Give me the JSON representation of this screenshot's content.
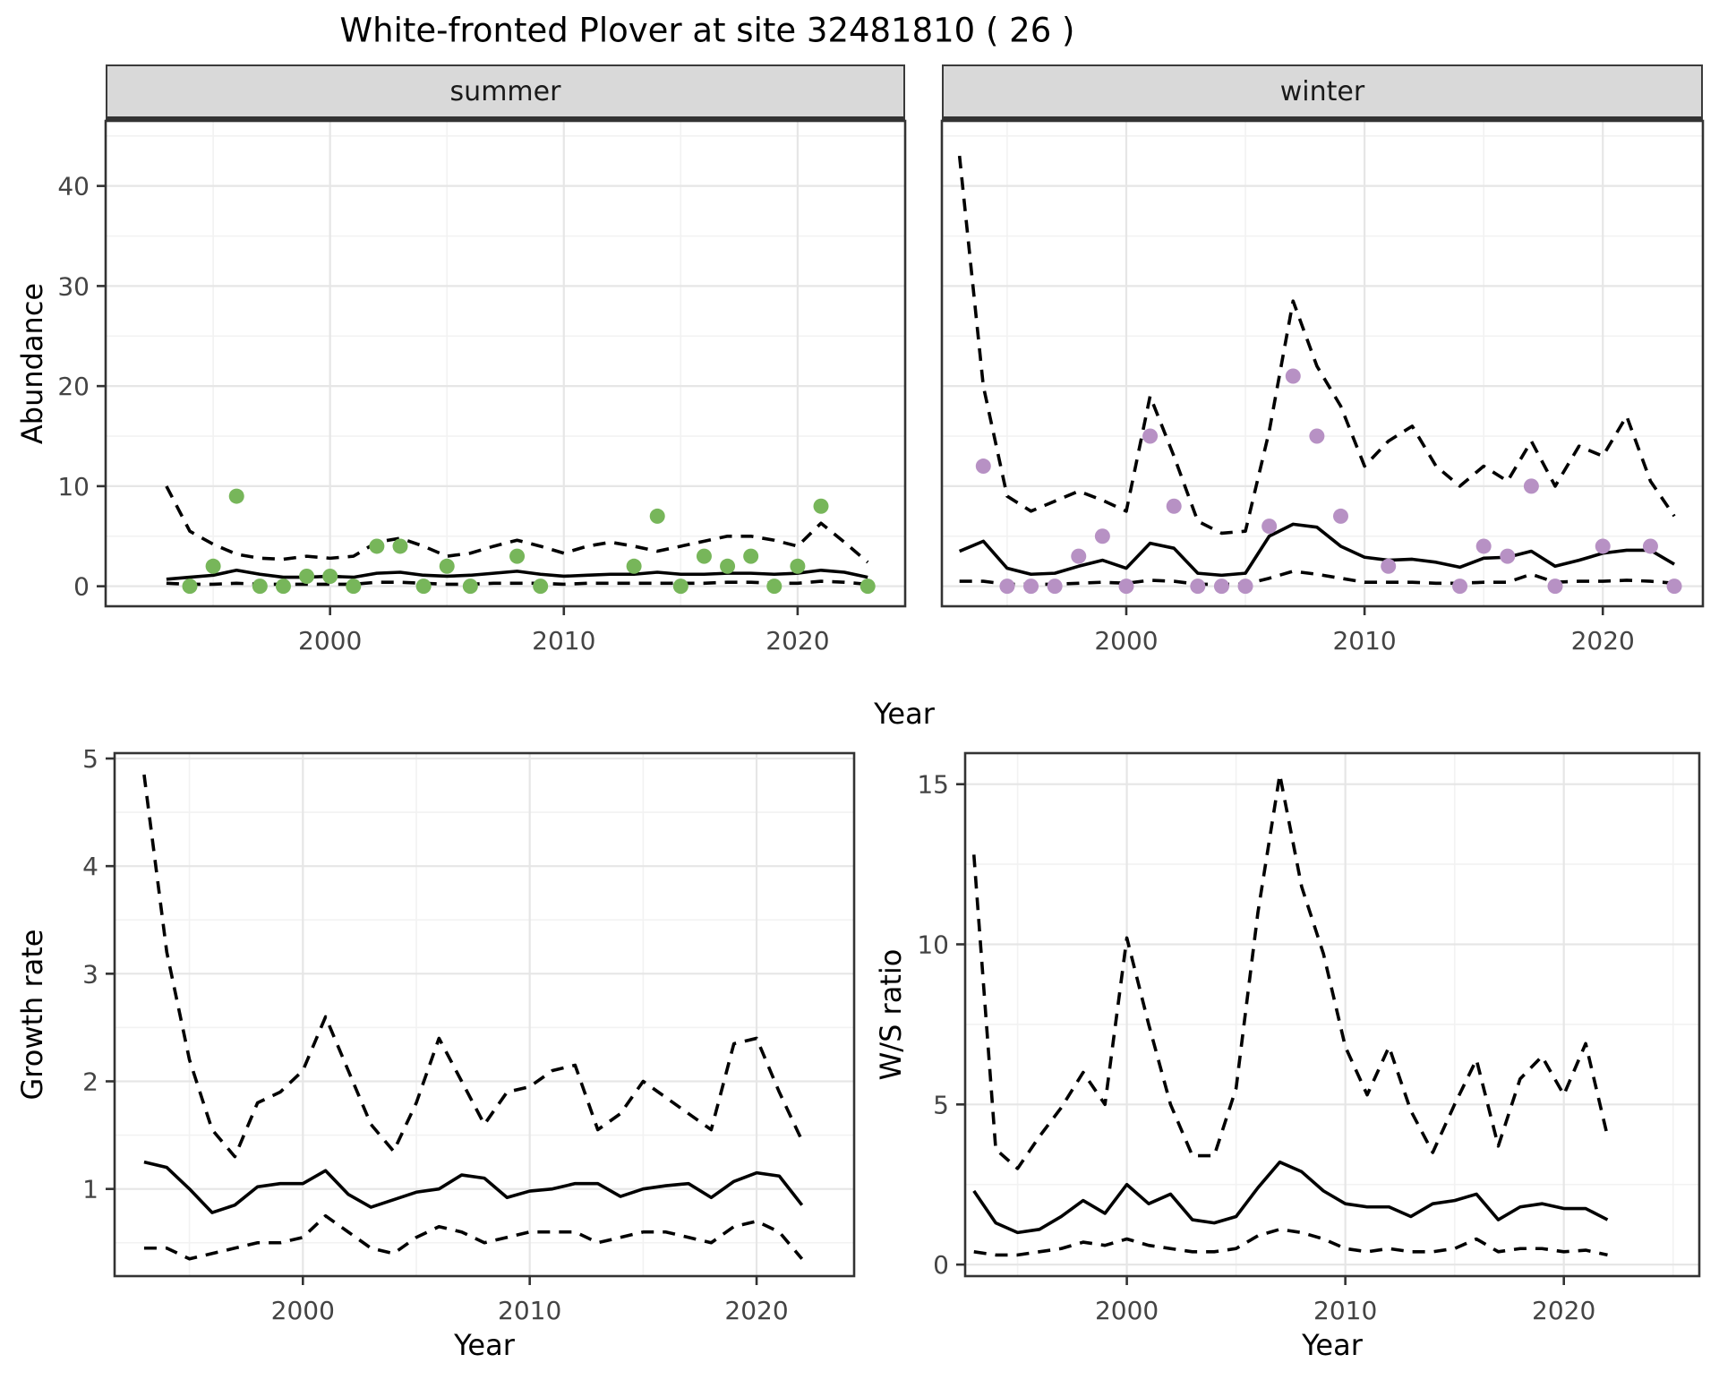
{
  "title": "White-fronted Plover at site 32481810 ( 26 )",
  "colors": {
    "summer_point": "#77b65a",
    "winter_point": "#b791c4",
    "line": "#000000",
    "strip_bg": "#d9d9d9",
    "grid_major": "#e6e6e6",
    "grid_minor": "#f2f2f2",
    "panel_border": "#333333",
    "tick_label": "#444444"
  },
  "chart_data": [
    {
      "type": "line",
      "facet": "summer",
      "ylabel": "Abundance",
      "xlabel": "Year",
      "grid": true,
      "legend": "none",
      "xlim": [
        1990.4,
        2024.6
      ],
      "ylim": [
        -2,
        46.5
      ],
      "xticks": [
        2000,
        2010,
        2020
      ],
      "xticks_minor": [
        1995,
        2005,
        2015
      ],
      "yticks": [
        0,
        10,
        20,
        30,
        40
      ],
      "yticks_minor": [
        5,
        15,
        25,
        35,
        45
      ],
      "line_years": [
        1993,
        1994,
        1995,
        1996,
        1997,
        1998,
        1999,
        2000,
        2001,
        2002,
        2003,
        2004,
        2005,
        2006,
        2007,
        2008,
        2009,
        2010,
        2011,
        2012,
        2013,
        2014,
        2015,
        2016,
        2017,
        2018,
        2019,
        2020,
        2021,
        2022,
        2023
      ],
      "series": [
        {
          "name": "median",
          "style": "solid",
          "values": [
            0.7,
            0.9,
            1.1,
            1.6,
            1.2,
            0.9,
            0.9,
            1.0,
            0.9,
            1.3,
            1.4,
            1.1,
            1.0,
            1.1,
            1.3,
            1.5,
            1.2,
            1.0,
            1.1,
            1.2,
            1.2,
            1.4,
            1.2,
            1.2,
            1.3,
            1.3,
            1.2,
            1.3,
            1.6,
            1.4,
            0.9
          ]
        },
        {
          "name": "upper 95% CI",
          "style": "dashed",
          "values": [
            10,
            5.5,
            4.2,
            3.2,
            2.8,
            2.7,
            3.0,
            2.8,
            3.0,
            4.4,
            4.8,
            4.0,
            3.0,
            3.3,
            4.0,
            4.6,
            4.0,
            3.3,
            4.0,
            4.4,
            4.0,
            3.5,
            4.0,
            4.5,
            5.0,
            5.0,
            4.6,
            4.0,
            6.3,
            4.4,
            2.4
          ]
        },
        {
          "name": "lower 95% CI",
          "style": "dashed",
          "values": [
            0.3,
            0.2,
            0.2,
            0.3,
            0.2,
            0.2,
            0.2,
            0.2,
            0.2,
            0.4,
            0.4,
            0.3,
            0.2,
            0.2,
            0.3,
            0.3,
            0.3,
            0.2,
            0.3,
            0.3,
            0.3,
            0.3,
            0.3,
            0.3,
            0.4,
            0.4,
            0.3,
            0.3,
            0.5,
            0.4,
            0.2
          ]
        }
      ],
      "points": {
        "color_key": "summer_point",
        "years": [
          1994,
          1995,
          1996,
          1997,
          1998,
          1999,
          2000,
          2001,
          2002,
          2003,
          2004,
          2005,
          2006,
          2008,
          2009,
          2013,
          2014,
          2015,
          2016,
          2017,
          2018,
          2019,
          2020,
          2021,
          2023
        ],
        "values": [
          0,
          2,
          9,
          0,
          0,
          1,
          1,
          0,
          4,
          4,
          0,
          2,
          0,
          3,
          0,
          2,
          7,
          0,
          3,
          2,
          3,
          0,
          2,
          8,
          0
        ]
      }
    },
    {
      "type": "line",
      "facet": "winter",
      "ylabel": "Abundance",
      "xlabel": "Year",
      "grid": true,
      "legend": "none",
      "xlim": [
        1992.26,
        2024.2
      ],
      "ylim": [
        -2,
        46.5
      ],
      "xticks": [
        2000,
        2010,
        2020
      ],
      "xticks_minor": [
        1995,
        2005,
        2015
      ],
      "yticks": [
        0,
        10,
        20,
        30,
        40
      ],
      "yticks_minor": [
        5,
        15,
        25,
        35,
        45
      ],
      "line_years": [
        1993,
        1994,
        1995,
        1996,
        1997,
        1998,
        1999,
        2000,
        2001,
        2002,
        2003,
        2004,
        2005,
        2006,
        2007,
        2008,
        2009,
        2010,
        2011,
        2012,
        2013,
        2014,
        2015,
        2016,
        2017,
        2018,
        2019,
        2020,
        2021,
        2022,
        2023
      ],
      "series": [
        {
          "name": "median",
          "style": "solid",
          "values": [
            3.5,
            4.5,
            1.8,
            1.2,
            1.3,
            2.0,
            2.6,
            1.8,
            4.3,
            3.8,
            1.3,
            1.1,
            1.3,
            5.0,
            6.2,
            5.9,
            4.0,
            2.9,
            2.6,
            2.7,
            2.4,
            1.9,
            2.8,
            2.9,
            3.5,
            2.0,
            2.6,
            3.3,
            3.6,
            3.6,
            2.2
          ]
        },
        {
          "name": "upper 95% CI",
          "style": "dashed",
          "values": [
            43,
            20,
            9,
            7.5,
            8.5,
            9.5,
            8.6,
            7.5,
            19,
            13,
            6.5,
            5.3,
            5.5,
            15.5,
            28.5,
            22,
            18,
            12,
            14.5,
            16,
            12,
            10,
            12,
            10.5,
            14.5,
            10,
            14,
            13,
            17,
            10.5,
            7
          ]
        },
        {
          "name": "lower 95% CI",
          "style": "dashed",
          "values": [
            0.5,
            0.5,
            0.2,
            0.2,
            0.2,
            0.3,
            0.4,
            0.3,
            0.6,
            0.5,
            0.2,
            0.2,
            0.2,
            0.8,
            1.5,
            1.2,
            0.8,
            0.4,
            0.4,
            0.4,
            0.3,
            0.3,
            0.4,
            0.4,
            1.2,
            0.4,
            0.5,
            0.5,
            0.6,
            0.5,
            0.3
          ]
        }
      ],
      "points": {
        "color_key": "winter_point",
        "years": [
          1994,
          1995,
          1996,
          1997,
          1998,
          1999,
          2000,
          2001,
          2002,
          2003,
          2004,
          2005,
          2006,
          2007,
          2008,
          2009,
          2011,
          2014,
          2015,
          2016,
          2017,
          2018,
          2020,
          2022,
          2023
        ],
        "values": [
          12,
          0,
          0,
          0,
          3,
          5,
          0,
          15,
          8,
          0,
          0,
          0,
          6,
          21,
          15,
          7,
          2,
          0,
          4,
          3,
          10,
          0,
          4,
          4,
          0
        ]
      }
    },
    {
      "type": "line",
      "facet": "",
      "ylabel": "Growth rate",
      "xlabel": "Year",
      "grid": true,
      "legend": "none",
      "xlim": [
        1991.7,
        2024.3
      ],
      "ylim": [
        0.19,
        5.05
      ],
      "xticks": [
        2000,
        2010,
        2020
      ],
      "xticks_minor": [
        1995,
        2005,
        2015
      ],
      "yticks": [
        1,
        2,
        3,
        4,
        5
      ],
      "yticks_minor": [
        0.5,
        1.5,
        2.5,
        3.5,
        4.5
      ],
      "line_years": [
        1993,
        1994,
        1995,
        1996,
        1997,
        1998,
        1999,
        2000,
        2001,
        2002,
        2003,
        2004,
        2005,
        2006,
        2007,
        2008,
        2009,
        2010,
        2011,
        2012,
        2013,
        2014,
        2015,
        2016,
        2017,
        2018,
        2019,
        2020,
        2021,
        2022
      ],
      "series": [
        {
          "name": "median",
          "style": "solid",
          "values": [
            1.25,
            1.2,
            1.0,
            0.78,
            0.85,
            1.02,
            1.05,
            1.05,
            1.17,
            0.95,
            0.83,
            0.9,
            0.97,
            1.0,
            1.13,
            1.1,
            0.92,
            0.98,
            1.0,
            1.05,
            1.05,
            0.93,
            1.0,
            1.03,
            1.05,
            0.92,
            1.07,
            1.15,
            1.12,
            0.85
          ]
        },
        {
          "name": "upper 95% CI",
          "style": "dashed",
          "values": [
            4.85,
            3.2,
            2.2,
            1.55,
            1.3,
            1.8,
            1.9,
            2.1,
            2.6,
            2.1,
            1.6,
            1.35,
            1.8,
            2.4,
            2.0,
            1.6,
            1.9,
            1.95,
            2.1,
            2.15,
            1.55,
            1.7,
            2.0,
            1.85,
            1.7,
            1.55,
            2.35,
            2.4,
            1.9,
            1.45
          ]
        },
        {
          "name": "lower 95% CI",
          "style": "dashed",
          "values": [
            0.45,
            0.45,
            0.35,
            0.4,
            0.45,
            0.5,
            0.5,
            0.55,
            0.75,
            0.6,
            0.45,
            0.4,
            0.55,
            0.65,
            0.6,
            0.5,
            0.55,
            0.6,
            0.6,
            0.6,
            0.5,
            0.55,
            0.6,
            0.6,
            0.55,
            0.5,
            0.65,
            0.7,
            0.6,
            0.35
          ]
        }
      ]
    },
    {
      "type": "line",
      "facet": "",
      "ylabel": "W/S ratio",
      "xlabel": "Year",
      "grid": true,
      "legend": "none",
      "xlim": [
        1992.6,
        2026.2
      ],
      "ylim": [
        -0.36,
        15.97
      ],
      "xticks": [
        2000,
        2010,
        2020
      ],
      "xticks_minor": [
        1995,
        2005,
        2015,
        2025
      ],
      "yticks": [
        0,
        5,
        10,
        15
      ],
      "yticks_minor": [
        2.5,
        7.5,
        12.5
      ],
      "line_years": [
        1993,
        1994,
        1995,
        1996,
        1997,
        1998,
        1999,
        2000,
        2001,
        2002,
        2003,
        2004,
        2005,
        2006,
        2007,
        2008,
        2009,
        2010,
        2011,
        2012,
        2013,
        2014,
        2015,
        2016,
        2017,
        2018,
        2019,
        2020,
        2021,
        2022
      ],
      "series": [
        {
          "name": "median",
          "style": "solid",
          "values": [
            2.3,
            1.3,
            1.0,
            1.1,
            1.5,
            2.0,
            1.6,
            2.5,
            1.9,
            2.2,
            1.4,
            1.3,
            1.5,
            2.4,
            3.2,
            2.9,
            2.3,
            1.9,
            1.8,
            1.8,
            1.5,
            1.9,
            2.0,
            2.2,
            1.4,
            1.8,
            1.9,
            1.75,
            1.75,
            1.4
          ]
        },
        {
          "name": "upper 95% CI",
          "style": "dashed",
          "values": [
            12.8,
            3.6,
            3.0,
            4.0,
            4.9,
            6.0,
            5.0,
            10.2,
            7.5,
            5.0,
            3.4,
            3.4,
            5.5,
            11.0,
            15.3,
            11.8,
            9.7,
            6.8,
            5.3,
            6.8,
            4.8,
            3.5,
            5.0,
            6.4,
            3.7,
            5.8,
            6.5,
            5.3,
            6.9,
            4.0
          ]
        },
        {
          "name": "lower 95% CI",
          "style": "dashed",
          "values": [
            0.4,
            0.3,
            0.3,
            0.4,
            0.5,
            0.7,
            0.6,
            0.8,
            0.6,
            0.5,
            0.4,
            0.4,
            0.5,
            0.9,
            1.1,
            1.0,
            0.8,
            0.5,
            0.4,
            0.5,
            0.4,
            0.4,
            0.5,
            0.8,
            0.4,
            0.5,
            0.5,
            0.4,
            0.45,
            0.3
          ]
        }
      ]
    }
  ]
}
